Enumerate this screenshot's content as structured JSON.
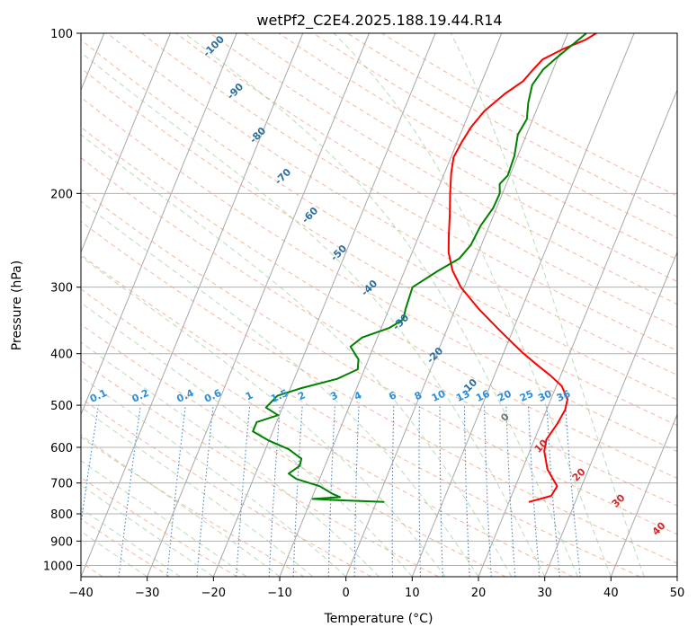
{
  "chart_data": {
    "type": "line",
    "title": "wetPf2_C2E4.2025.188.19.44.R14",
    "xlabel": "Temperature (°C)",
    "ylabel": "Pressure (hPa)",
    "xlim": [
      -40,
      50
    ],
    "ylim": [
      1050,
      100
    ],
    "yscale": "log",
    "x_ticks": [
      "−40",
      "−30",
      "−20",
      "−10",
      "0",
      "10",
      "20",
      "30",
      "40",
      "50"
    ],
    "x_tick_values": [
      -40,
      -30,
      -20,
      -10,
      0,
      10,
      20,
      30,
      40,
      50
    ],
    "y_ticks": [
      "100",
      "200",
      "300",
      "400",
      "500",
      "600",
      "700",
      "800",
      "900",
      "1000"
    ],
    "y_tick_values": [
      100,
      200,
      300,
      400,
      500,
      600,
      700,
      800,
      900,
      1000
    ],
    "grid": true,
    "series": [
      {
        "color": "#ff0000",
        "points": [
          [
            23.0,
            760
          ],
          [
            26.0,
            740
          ],
          [
            26.3,
            710
          ],
          [
            23.8,
            660
          ],
          [
            22.2,
            610
          ],
          [
            21.8,
            580
          ],
          [
            22.5,
            540
          ],
          [
            22.8,
            510
          ],
          [
            22.5,
            487
          ],
          [
            20.8,
            460
          ],
          [
            18.5,
            440
          ],
          [
            15.8,
            420
          ],
          [
            12.8,
            398
          ],
          [
            8.2,
            363
          ],
          [
            3.6,
            330
          ],
          [
            -0.5,
            300
          ],
          [
            -2.8,
            279
          ],
          [
            -4.5,
            258
          ],
          [
            -5.5,
            240
          ],
          [
            -6.6,
            220
          ],
          [
            -7.9,
            200
          ],
          [
            -9.0,
            183
          ],
          [
            -9.6,
            171
          ],
          [
            -9.3,
            160
          ],
          [
            -8.8,
            150
          ],
          [
            -7.8,
            140
          ],
          [
            -5.8,
            130
          ],
          [
            -3.8,
            123
          ],
          [
            -3.0,
            117
          ],
          [
            -2.2,
            112
          ],
          [
            0.3,
            107
          ],
          [
            3.0,
            103
          ],
          [
            4.3,
            100
          ]
        ]
      },
      {
        "color": "#008000",
        "points": [
          [
            1.2,
            760
          ],
          [
            -6.0,
            754
          ],
          [
            -9.8,
            750
          ],
          [
            -5.8,
            744
          ],
          [
            -7.2,
            733
          ],
          [
            -9.5,
            710
          ],
          [
            -13.5,
            688
          ],
          [
            -15.0,
            672
          ],
          [
            -13.8,
            650
          ],
          [
            -14.0,
            630
          ],
          [
            -16.5,
            605
          ],
          [
            -20.0,
            583
          ],
          [
            -23.0,
            560
          ],
          [
            -23.0,
            538
          ],
          [
            -20.2,
            522
          ],
          [
            -22.5,
            505
          ],
          [
            -21.5,
            480
          ],
          [
            -18.5,
            465
          ],
          [
            -13.5,
            446
          ],
          [
            -11.0,
            428
          ],
          [
            -11.5,
            410
          ],
          [
            -13.5,
            388
          ],
          [
            -12.3,
            373
          ],
          [
            -8.8,
            358
          ],
          [
            -7.2,
            345
          ],
          [
            -7.5,
            330
          ],
          [
            -7.8,
            300
          ],
          [
            -5.0,
            280
          ],
          [
            -2.5,
            265
          ],
          [
            -1.6,
            250
          ],
          [
            -1.3,
            230
          ],
          [
            -0.5,
            213
          ],
          [
            -0.4,
            200
          ],
          [
            -1.0,
            192
          ],
          [
            -0.3,
            185
          ],
          [
            -0.5,
            170
          ],
          [
            -1.3,
            155
          ],
          [
            -0.9,
            145
          ],
          [
            -1.7,
            135
          ],
          [
            -2.2,
            125
          ],
          [
            -1.5,
            117
          ],
          [
            -0.4,
            112
          ],
          [
            2.8,
            100
          ]
        ]
      }
    ],
    "dry_adiabat_labels": [
      "-100",
      "-90",
      "-80",
      "-70",
      "-60",
      "-50",
      "-40",
      "-30",
      "-20",
      "-10",
      "0",
      "10",
      "20",
      "30",
      "40"
    ],
    "mixing_ratio_labels": [
      "0.1",
      "0.2",
      "0.4",
      "0.6",
      "1",
      "1.5",
      "2",
      "3",
      "4",
      "6",
      "8",
      "10",
      "13",
      "16",
      "20",
      "25",
      "30",
      "36"
    ]
  }
}
